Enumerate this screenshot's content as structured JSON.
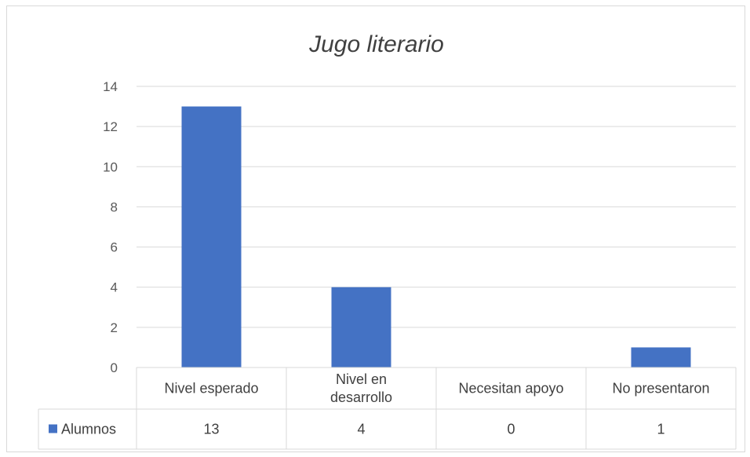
{
  "chart_data": {
    "type": "bar",
    "title": "Jugo literario",
    "categories": [
      "Nivel esperado",
      "Nivel en desarrollo",
      "Necesitan apoyo",
      "No presentaron"
    ],
    "category_lines": [
      [
        "Nivel esperado"
      ],
      [
        "Nivel en",
        "desarrollo"
      ],
      [
        "Necesitan apoyo"
      ],
      [
        "No presentaron"
      ]
    ],
    "series": [
      {
        "name": "Alumnos",
        "values": [
          13,
          4,
          0,
          1
        ],
        "value_labels": [
          "13",
          "4",
          "0",
          "1"
        ],
        "color": "#4472c4"
      }
    ],
    "ylim": [
      0,
      14
    ],
    "yticks": [
      0,
      2,
      4,
      6,
      8,
      10,
      12,
      14
    ],
    "ytick_labels": [
      "0",
      "2",
      "4",
      "6",
      "8",
      "10",
      "12",
      "14"
    ],
    "grid": true,
    "legend": "data-table-left",
    "colors": {
      "bar": "#4472c4",
      "grid": "#d9d9d9",
      "text": "#595959"
    }
  }
}
